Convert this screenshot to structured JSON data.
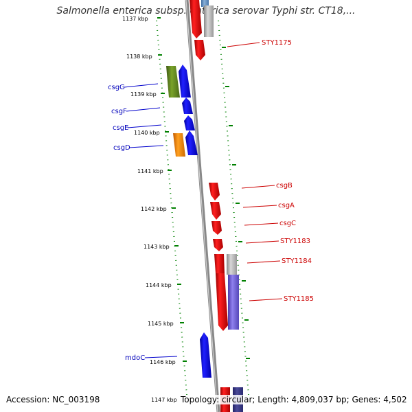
{
  "title": "Salmonella enterica subsp. enterica serovar Typhi str. CT18,...",
  "accession": "Accession: NC_003198",
  "topology": "Topology: circular; Length: 4,809,037 bp; Genes: 4,502",
  "kbp_labels": [
    "1137 kbp",
    "1138 kbp",
    "1139 kbp",
    "1140 kbp",
    "1141 kbp",
    "1142 kbp",
    "1143 kbp",
    "1144 kbp",
    "1145 kbp",
    "1146 kbp",
    "1147 kbp"
  ],
  "left_genes": [
    "csgG",
    "csgF",
    "csgE",
    "csgD",
    "mdoC"
  ],
  "right_genes": [
    "STY1175",
    "csgB",
    "csgA",
    "csgC",
    "STY1183",
    "STY1184",
    "STY1185"
  ],
  "colors": {
    "forward": "#ff0000",
    "reverse": "#0000ff",
    "olive": "#6b8e23",
    "orange": "#ff8c00",
    "grey": "#b0b0b0",
    "purple": "#7a6adb",
    "tick": "#008000",
    "backbone": "#808080"
  }
}
